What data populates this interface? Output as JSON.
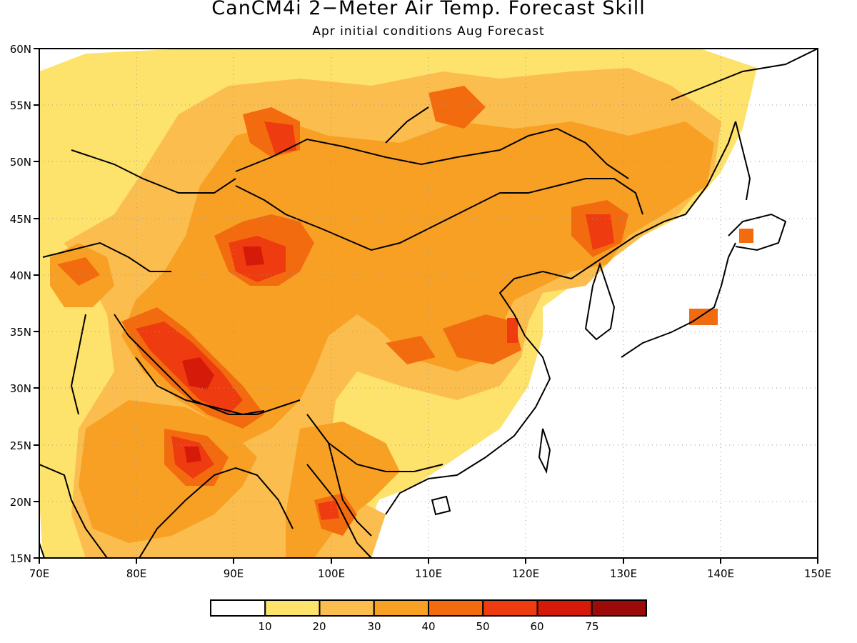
{
  "title": "CanCM4i 2−Meter Air Temp. Forecast Skill",
  "subtitle": "Apr initial conditions   Aug Forecast",
  "map": {
    "lon_range": [
      70,
      150
    ],
    "lat_range": [
      15,
      60
    ],
    "lon_ticks": [
      "70E",
      "80E",
      "90E",
      "100E",
      "110E",
      "120E",
      "130E",
      "140E",
      "150E"
    ],
    "lat_ticks": [
      "60N",
      "55N",
      "50N",
      "45N",
      "40N",
      "35N",
      "30N",
      "25N",
      "20N",
      "15N"
    ],
    "grid": "dotted"
  },
  "colorbar": {
    "labels": [
      "10",
      "20",
      "30",
      "40",
      "50",
      "60",
      "75"
    ],
    "colors": [
      "#ffffff",
      "#fde26c",
      "#fbbd4e",
      "#f8a023",
      "#f36b0f",
      "#ee3b0f",
      "#d51a0a",
      "#9c0a0a"
    ]
  }
}
